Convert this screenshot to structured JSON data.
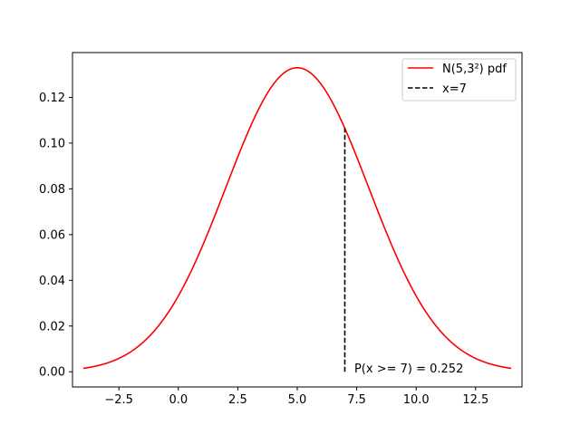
{
  "chart_data": {
    "type": "line",
    "title": "",
    "xlabel": "",
    "ylabel": "",
    "xlim": [
      -4.45,
      14.45
    ],
    "ylim": [
      -0.00665,
      0.1396
    ],
    "xticks": [
      -2.5,
      0.0,
      2.5,
      5.0,
      7.5,
      10.0,
      12.5
    ],
    "xtick_labels": [
      "−2.5",
      "0.0",
      "2.5",
      "5.0",
      "7.5",
      "10.0",
      "12.5"
    ],
    "yticks": [
      0.0,
      0.02,
      0.04,
      0.06,
      0.08,
      0.1,
      0.12
    ],
    "ytick_labels": [
      "0.00",
      "0.02",
      "0.04",
      "0.06",
      "0.08",
      "0.10",
      "0.12"
    ],
    "grid": false,
    "legend_position": "top-right",
    "series": [
      {
        "name": "N(5,3²) pdf",
        "kind": "normal-pdf",
        "mean": 5,
        "sd": 3,
        "x_range": [
          -4,
          14
        ],
        "color": "#ff0000",
        "line_style": "solid"
      },
      {
        "name": "x=7",
        "kind": "vertical-line",
        "x": 7,
        "y_range": [
          0,
          0.1065
        ],
        "color": "#000000",
        "line_style": "dashed"
      }
    ],
    "annotations": [
      {
        "text": "P(x >= 7) = 0.252",
        "x": 7.4,
        "y": 0.0
      }
    ]
  }
}
